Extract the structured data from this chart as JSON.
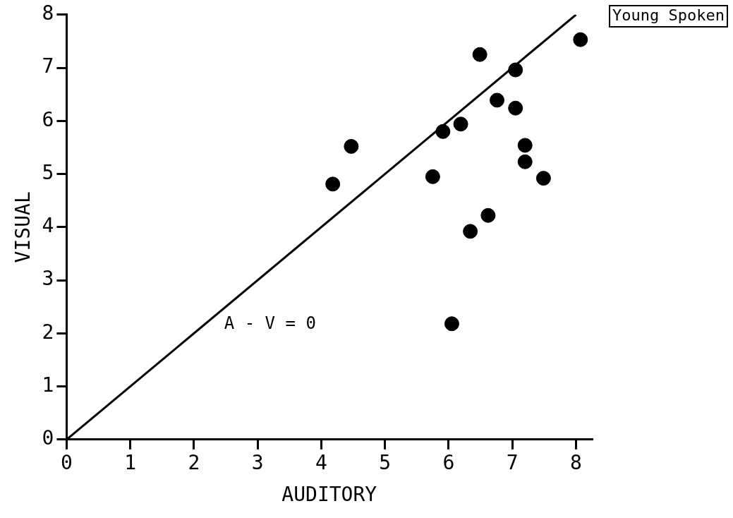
{
  "chart_data": {
    "type": "scatter",
    "title": "Young Spoken",
    "xlabel": "AUDITORY",
    "ylabel": "VISUAL",
    "annotations": [
      "A - V = 0"
    ],
    "marker": "circle",
    "grid": false,
    "legend": false,
    "xlim": [
      0,
      8.25
    ],
    "ylim": [
      0,
      8
    ],
    "xticks": [
      0,
      1,
      2,
      3,
      4,
      5,
      6,
      7,
      8
    ],
    "yticks": [
      0,
      1,
      2,
      3,
      4,
      5,
      6,
      7,
      8
    ],
    "series": [
      {
        "color": "#000000",
        "x": [
          4.18,
          4.47,
          5.75,
          5.91,
          6.19,
          6.49,
          7.05,
          6.76,
          7.05,
          7.2,
          7.2,
          7.49,
          6.62,
          6.34,
          8.07,
          6.05
        ],
        "values": [
          4.81,
          5.52,
          4.95,
          5.8,
          5.94,
          7.25,
          6.96,
          6.39,
          6.24,
          5.54,
          5.23,
          4.92,
          4.22,
          3.92,
          7.53,
          2.18
        ]
      },
      {
        "type": "line",
        "color": "#000000",
        "marker": "none",
        "x": [
          0,
          8
        ],
        "values": [
          0,
          8
        ]
      }
    ]
  }
}
